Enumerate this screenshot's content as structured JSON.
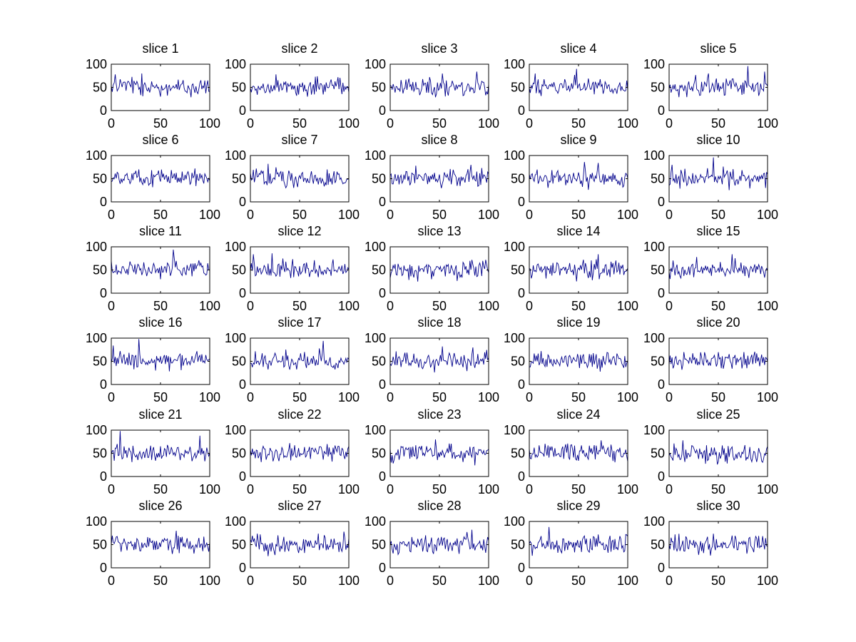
{
  "figure": {
    "background": "#ffffff",
    "grid_layout": "6 rows x 5 columns"
  },
  "chart_data": {
    "type": "line",
    "line_color": "#00008b",
    "axis_color": "#000000",
    "x_ticks": [
      0,
      50,
      100
    ],
    "y_ticks": [
      0,
      50,
      100
    ],
    "xlim": [
      0,
      100
    ],
    "ylim": [
      0,
      100
    ],
    "grid": false,
    "points_per_series": 101,
    "series_shape": "noisy signal fluctuating around ~50 (range roughly 25-95), values approximated",
    "panels": [
      {
        "title": "slice 1",
        "spikes": [
          [
            4,
            78
          ],
          [
            31,
            80
          ],
          [
            50,
            30
          ]
        ]
      },
      {
        "title": "slice 2",
        "spikes": [
          [
            26,
            78
          ],
          [
            68,
            74
          ]
        ]
      },
      {
        "title": "slice 3",
        "spikes": [
          [
            53,
            80
          ],
          [
            88,
            84
          ],
          [
            97,
            33
          ]
        ]
      },
      {
        "title": "slice 4",
        "spikes": [
          [
            6,
            80
          ],
          [
            48,
            90
          ],
          [
            66,
            35
          ]
        ]
      },
      {
        "title": "slice 5",
        "spikes": [
          [
            40,
            80
          ],
          [
            80,
            96
          ],
          [
            97,
            84
          ]
        ]
      },
      {
        "title": "slice 6",
        "spikes": [
          [
            28,
            70
          ],
          [
            85,
            72
          ]
        ]
      },
      {
        "title": "slice 7",
        "spikes": [
          [
            18,
            82
          ],
          [
            44,
            30
          ]
        ]
      },
      {
        "title": "slice 8",
        "spikes": [
          [
            26,
            78
          ],
          [
            82,
            80
          ]
        ]
      },
      {
        "title": "slice 9",
        "spikes": [
          [
            56,
            86
          ],
          [
            70,
            84
          ],
          [
            90,
            38
          ]
        ]
      },
      {
        "title": "slice 10",
        "spikes": [
          [
            3,
            80
          ],
          [
            45,
            96
          ],
          [
            98,
            30
          ]
        ]
      },
      {
        "title": "slice 11",
        "spikes": [
          [
            63,
            94
          ],
          [
            50,
            30
          ]
        ]
      },
      {
        "title": "slice 12",
        "spikes": [
          [
            3,
            84
          ],
          [
            22,
            86
          ],
          [
            60,
            35
          ]
        ]
      },
      {
        "title": "slice 13",
        "spikes": [
          [
            42,
            30
          ],
          [
            97,
            72
          ]
        ]
      },
      {
        "title": "slice 14",
        "spikes": [
          [
            70,
            84
          ],
          [
            2,
            32
          ]
        ]
      },
      {
        "title": "slice 15",
        "spikes": [
          [
            64,
            84
          ],
          [
            28,
            78
          ]
        ]
      },
      {
        "title": "slice 16",
        "spikes": [
          [
            28,
            98
          ],
          [
            2,
            84
          ],
          [
            45,
            30
          ]
        ]
      },
      {
        "title": "slice 17",
        "spikes": [
          [
            74,
            94
          ],
          [
            40,
            32
          ]
        ]
      },
      {
        "title": "slice 18",
        "spikes": [
          [
            53,
            82
          ],
          [
            84,
            80
          ]
        ]
      },
      {
        "title": "slice 19",
        "spikes": [
          [
            12,
            72
          ],
          [
            96,
            36
          ]
        ]
      },
      {
        "title": "slice 20",
        "spikes": [
          [
            15,
            70
          ],
          [
            55,
            34
          ]
        ]
      },
      {
        "title": "slice 21",
        "spikes": [
          [
            9,
            98
          ],
          [
            90,
            88
          ],
          [
            3,
            34
          ]
        ]
      },
      {
        "title": "slice 22",
        "spikes": [
          [
            40,
            72
          ],
          [
            96,
            38
          ]
        ]
      },
      {
        "title": "slice 23",
        "spikes": [
          [
            46,
            80
          ],
          [
            86,
            24
          ],
          [
            1,
            30
          ]
        ]
      },
      {
        "title": "slice 24",
        "spikes": [
          [
            73,
            78
          ],
          [
            50,
            34
          ]
        ]
      },
      {
        "title": "slice 25",
        "spikes": [
          [
            49,
            26
          ],
          [
            14,
            78
          ]
        ]
      },
      {
        "title": "slice 26",
        "spikes": [
          [
            66,
            80
          ],
          [
            62,
            30
          ]
        ]
      },
      {
        "title": "slice 27",
        "spikes": [
          [
            10,
            72
          ],
          [
            55,
            32
          ]
        ]
      },
      {
        "title": "slice 28",
        "spikes": [
          [
            83,
            82
          ],
          [
            70,
            30
          ]
        ]
      },
      {
        "title": "slice 29",
        "spikes": [
          [
            20,
            88
          ],
          [
            3,
            26
          ]
        ]
      },
      {
        "title": "slice 30",
        "spikes": [
          [
            6,
            72
          ],
          [
            30,
            28
          ]
        ]
      }
    ]
  }
}
